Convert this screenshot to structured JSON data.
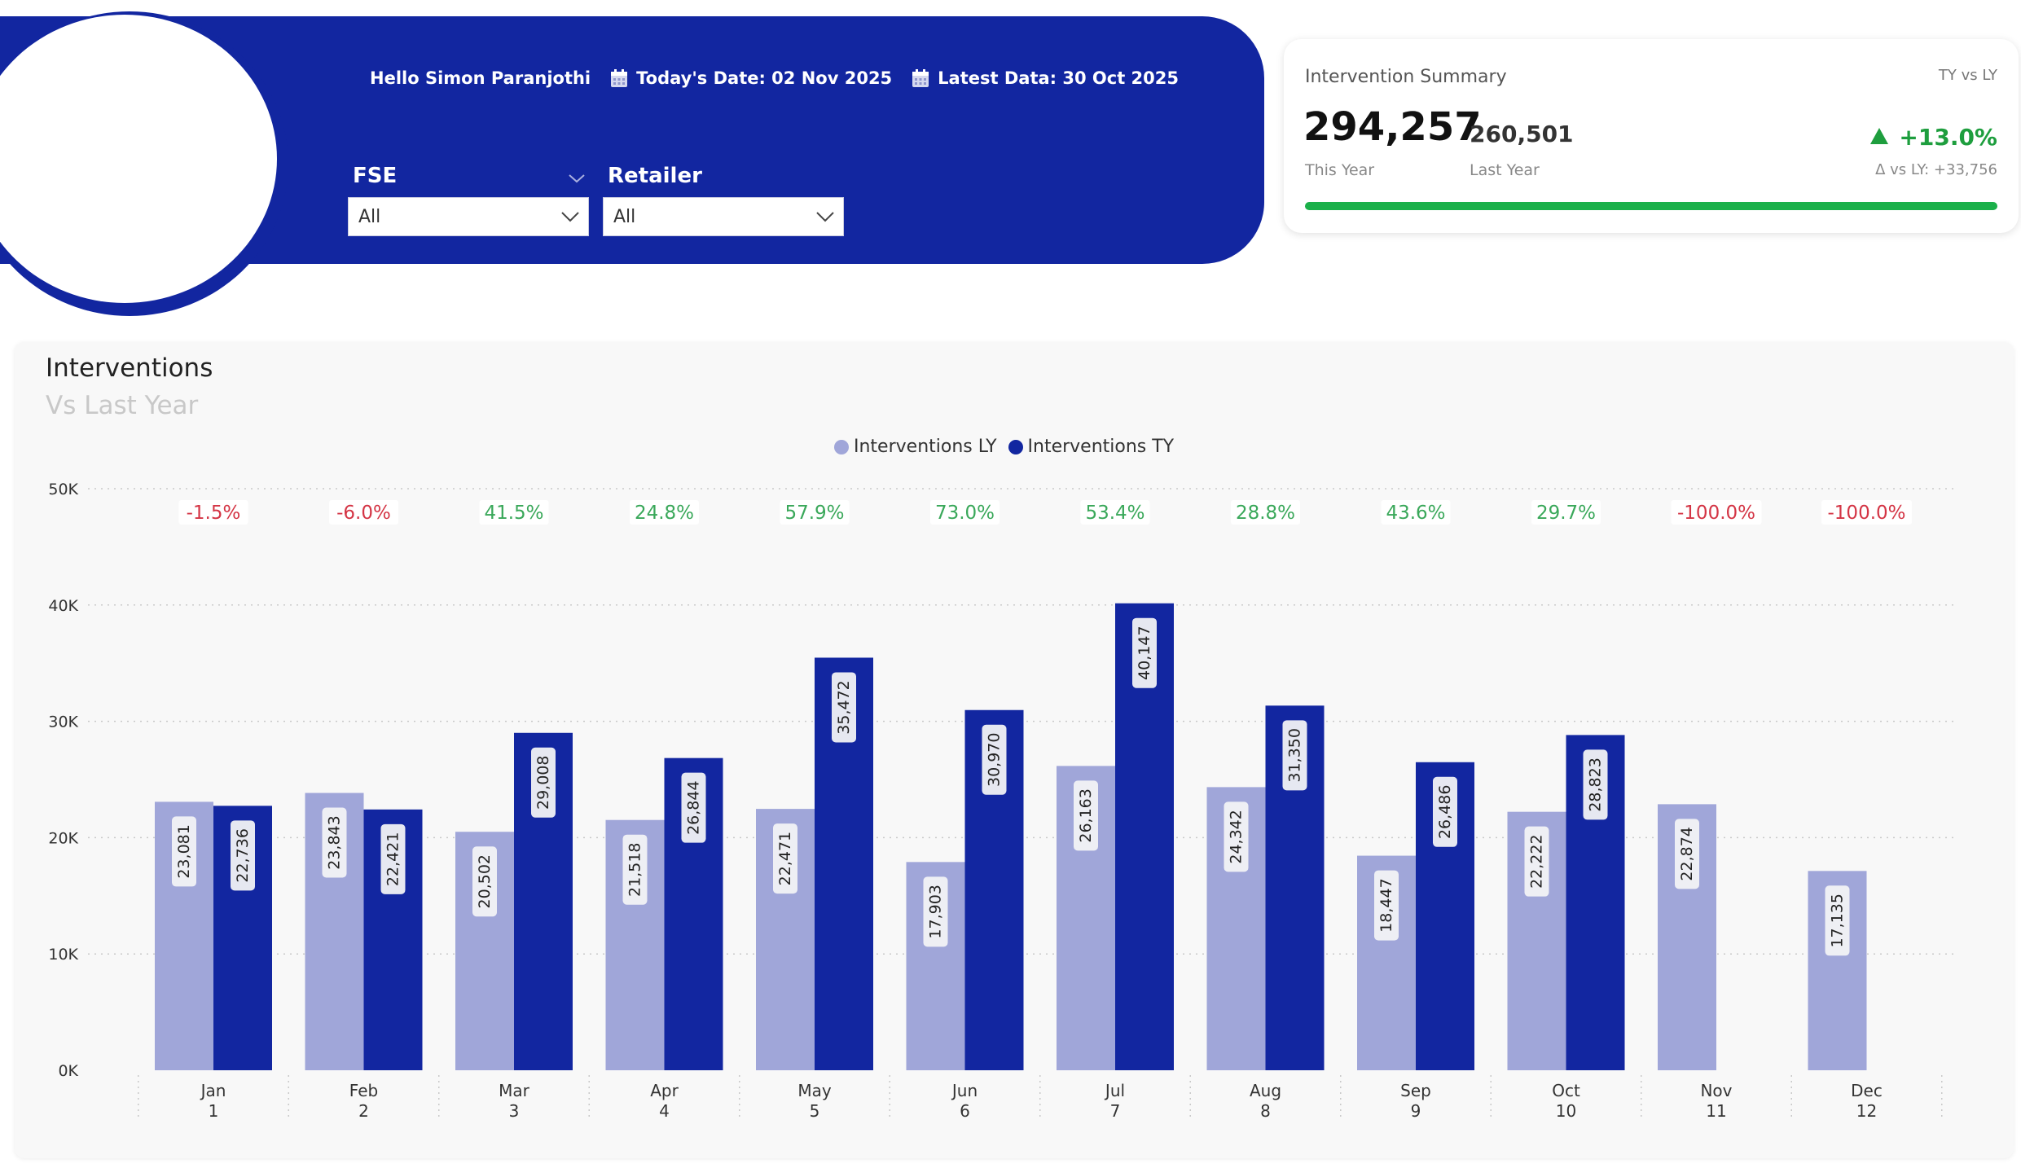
{
  "header": {
    "greeting": "Hello Simon Paranjothi",
    "today_date": "Today's Date: 02 Nov 2025",
    "latest_data": "Latest Data: 30 Oct 2025",
    "accent_color": "#1226a0"
  },
  "filters": {
    "fse": {
      "label": "FSE",
      "value": "All"
    },
    "retailer": {
      "label": "Retailer",
      "value": "All"
    }
  },
  "summary": {
    "title": "Intervention Summary",
    "tag": "TY vs LY",
    "this_year": "294,257",
    "this_year_label": "This Year",
    "last_year": "260,501",
    "last_year_label": "Last Year",
    "change": "+13.0%",
    "delta": "Δ vs LY: +33,756",
    "positive_color": "#1e9e3e"
  },
  "chart": {
    "title": "Interventions",
    "subtitle": "Vs Last Year"
  },
  "chart_data": {
    "type": "bar",
    "categories": [
      "Jan",
      "Feb",
      "Mar",
      "Apr",
      "May",
      "Jun",
      "Jul",
      "Aug",
      "Sep",
      "Oct",
      "Nov",
      "Dec"
    ],
    "category_numbers": [
      "1",
      "2",
      "3",
      "4",
      "5",
      "6",
      "7",
      "8",
      "9",
      "10",
      "11",
      "12"
    ],
    "series": [
      {
        "name": "Interventions LY",
        "color": "#a0a6d9",
        "values": [
          23081,
          23843,
          20502,
          21518,
          22471,
          17903,
          26163,
          24342,
          18447,
          22222,
          22874,
          17135
        ],
        "labels": [
          "23,081",
          "23,843",
          "20,502",
          "21,518",
          "22,471",
          "17,903",
          "26,163",
          "24,342",
          "18,447",
          "22,222",
          "22,874",
          "17,135"
        ]
      },
      {
        "name": "Interventions TY",
        "color": "#1226a0",
        "values": [
          22736,
          22421,
          29008,
          26844,
          35472,
          30970,
          40147,
          31350,
          26486,
          28823,
          0,
          0
        ],
        "labels": [
          "22,736",
          "22,421",
          "29,008",
          "26,844",
          "35,472",
          "30,970",
          "40,147",
          "31,350",
          "26,486",
          "28,823",
          "",
          ""
        ]
      }
    ],
    "pct_change": [
      "-1.5%",
      "-6.0%",
      "41.5%",
      "24.8%",
      "57.9%",
      "73.0%",
      "53.4%",
      "28.8%",
      "43.6%",
      "29.7%",
      "-100.0%",
      "-100.0%"
    ],
    "y_ticks": [
      "0K",
      "10K",
      "20K",
      "30K",
      "40K",
      "50K"
    ],
    "ylim": [
      0,
      50000
    ],
    "grid": true,
    "legend": "top-center",
    "positive_color": "#3aa85a",
    "negative_color": "#d43545"
  }
}
